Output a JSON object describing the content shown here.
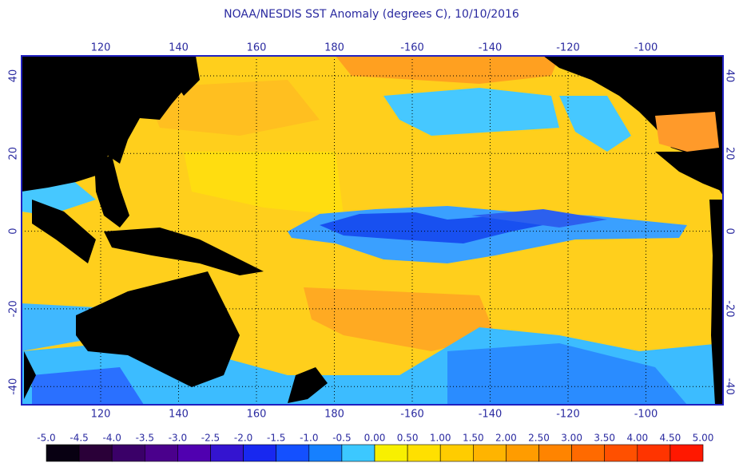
{
  "title": "NOAA/NESDIS SST Anomaly (degrees C), 10/10/2016",
  "longitude_labels": [
    "120",
    "140",
    "160",
    "180",
    "-160",
    "-140",
    "-120",
    "-100"
  ],
  "latitude_labels": [
    "40",
    "20",
    "0",
    "-20",
    "-40"
  ],
  "colorbar": {
    "labels": [
      "-5.0",
      "-4.5",
      "-4.0",
      "-3.5",
      "-3.0",
      "-2.5",
      "-2.0",
      "-1.5",
      "-1.0",
      "-0.5",
      "0.00",
      "0.50",
      "1.00",
      "1.50",
      "2.00",
      "2.50",
      "3.00",
      "3.50",
      "4.00",
      "4.50",
      "5.00"
    ],
    "colors": [
      "#080012",
      "#2a0038",
      "#3a0068",
      "#4a008c",
      "#5000b0",
      "#3414d0",
      "#1828f0",
      "#1450ff",
      "#1680ff",
      "#3cc8ff",
      "#f8f000",
      "#ffe000",
      "#ffcc00",
      "#ffb400",
      "#ff9c00",
      "#ff8400",
      "#ff6a00",
      "#ff5000",
      "#ff3400",
      "#ff1800"
    ]
  }
}
